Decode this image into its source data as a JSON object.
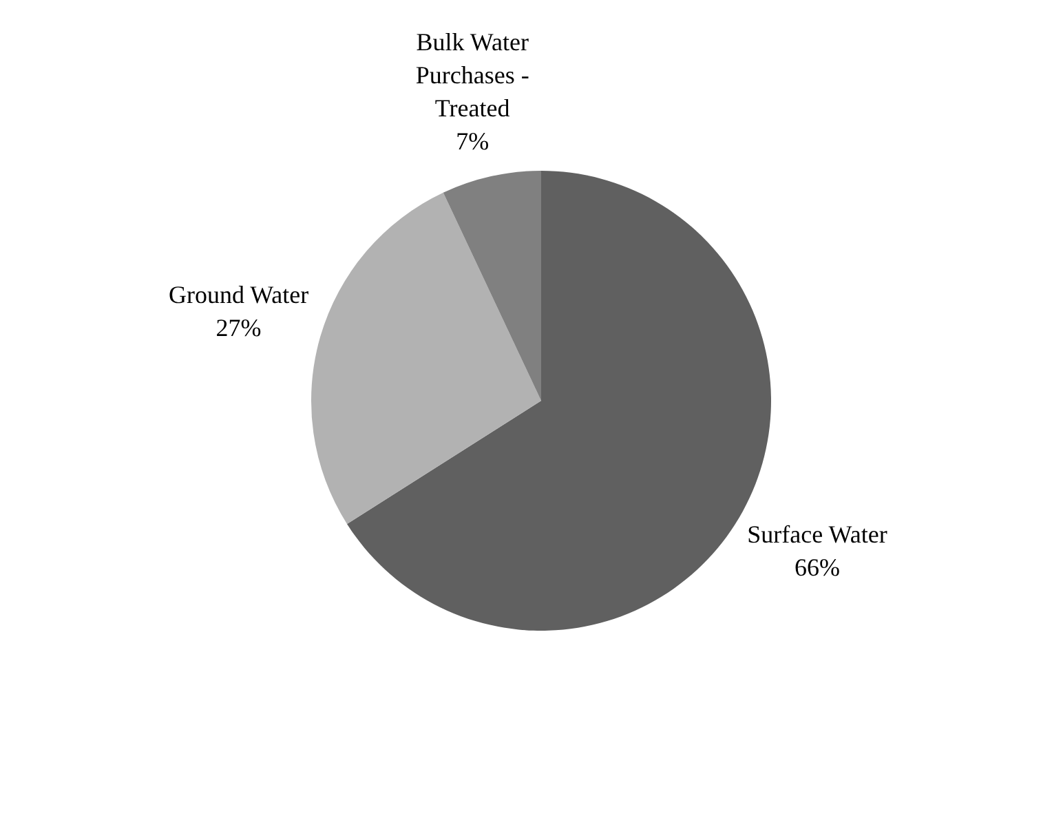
{
  "chart_data": {
    "type": "pie",
    "categories": [
      "Surface Water",
      "Ground Water",
      "Bulk Water Purchases - Treated"
    ],
    "values": [
      66,
      27,
      7
    ],
    "colors": [
      "#606060",
      "#b2b2b2",
      "#808080"
    ],
    "value_labels": [
      "66%",
      "27%",
      "7%"
    ],
    "legend": false
  }
}
